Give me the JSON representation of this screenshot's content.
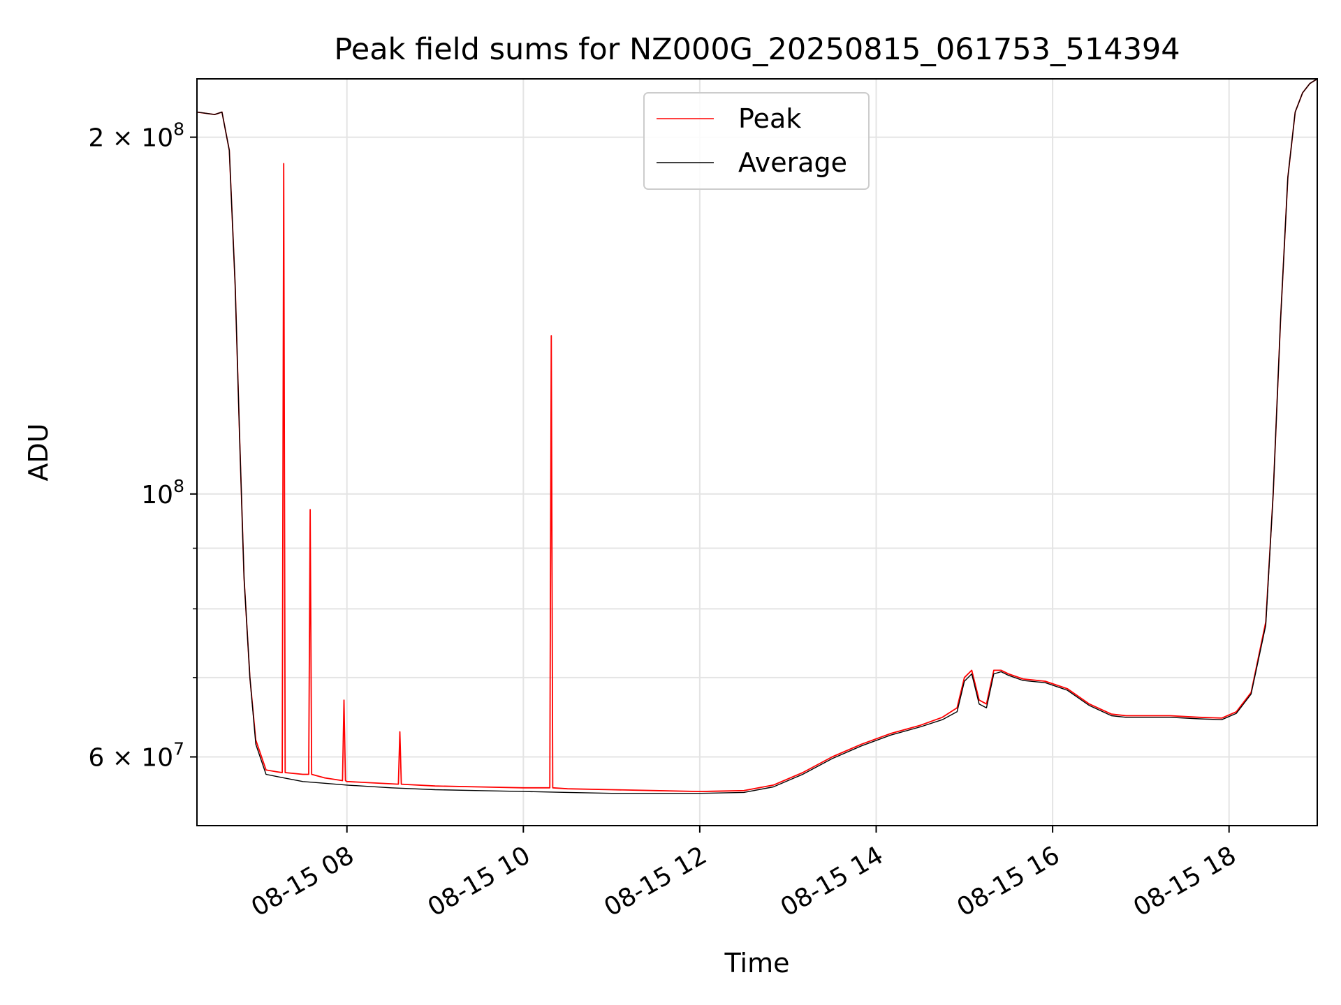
{
  "chart_data": {
    "type": "line",
    "title": "Peak field sums for NZ000G_20250815_061753_514394",
    "xlabel": "Time",
    "ylabel": "ADU",
    "x_range": [
      "2025-08-15 06:18",
      "2025-08-15 19:00"
    ],
    "y_range": [
      52500000,
      224000000
    ],
    "y_scale": "log",
    "grid": true,
    "legend": {
      "placement": "top-center"
    },
    "x_ticks": [
      {
        "x": "2025-08-15 08:00",
        "label": "08-15 08"
      },
      {
        "x": "2025-08-15 10:00",
        "label": "08-15 10"
      },
      {
        "x": "2025-08-15 12:00",
        "label": "08-15 12"
      },
      {
        "x": "2025-08-15 14:00",
        "label": "08-15 14"
      },
      {
        "x": "2025-08-15 16:00",
        "label": "08-15 16"
      },
      {
        "x": "2025-08-15 18:00",
        "label": "08-15 18"
      }
    ],
    "y_ticks": [
      {
        "value": 60000000,
        "base": "6 × 10",
        "exp": "7"
      },
      {
        "value": 100000000,
        "base": "10",
        "exp": "8"
      },
      {
        "value": 200000000,
        "base": "2 × 10",
        "exp": "8"
      }
    ],
    "y_minor_ticks": [
      70000000,
      80000000,
      90000000
    ],
    "series": [
      {
        "name": "Peak",
        "color": "#ff0000",
        "x": [
          "2025-08-15 06:18",
          "2025-08-15 06:30",
          "2025-08-15 06:35",
          "2025-08-15 06:40",
          "2025-08-15 06:44",
          "2025-08-15 06:47",
          "2025-08-15 06:50",
          "2025-08-15 06:54",
          "2025-08-15 06:58",
          "2025-08-15 07:05",
          "2025-08-15 07:12",
          "2025-08-15 07:16",
          "2025-08-15 07:17",
          "2025-08-15 07:18",
          "2025-08-15 07:30",
          "2025-08-15 07:34",
          "2025-08-15 07:35",
          "2025-08-15 07:36",
          "2025-08-15 07:45",
          "2025-08-15 07:57",
          "2025-08-15 07:58",
          "2025-08-15 07:59",
          "2025-08-15 08:00",
          "2025-08-15 08:35",
          "2025-08-15 08:36",
          "2025-08-15 08:37",
          "2025-08-15 09:00",
          "2025-08-15 09:30",
          "2025-08-15 10:00",
          "2025-08-15 10:18",
          "2025-08-15 10:19",
          "2025-08-15 10:20",
          "2025-08-15 10:30",
          "2025-08-15 11:00",
          "2025-08-15 11:30",
          "2025-08-15 12:00",
          "2025-08-15 12:30",
          "2025-08-15 12:50",
          "2025-08-15 13:10",
          "2025-08-15 13:30",
          "2025-08-15 13:50",
          "2025-08-15 14:10",
          "2025-08-15 14:30",
          "2025-08-15 14:45",
          "2025-08-15 14:55",
          "2025-08-15 15:00",
          "2025-08-15 15:05",
          "2025-08-15 15:10",
          "2025-08-15 15:15",
          "2025-08-15 15:20",
          "2025-08-15 15:25",
          "2025-08-15 15:30",
          "2025-08-15 15:40",
          "2025-08-15 15:55",
          "2025-08-15 16:10",
          "2025-08-15 16:25",
          "2025-08-15 16:40",
          "2025-08-15 16:50",
          "2025-08-15 17:00",
          "2025-08-15 17:20",
          "2025-08-15 17:40",
          "2025-08-15 17:55",
          "2025-08-15 18:05",
          "2025-08-15 18:15",
          "2025-08-15 18:25",
          "2025-08-15 18:30",
          "2025-08-15 18:35",
          "2025-08-15 18:40",
          "2025-08-15 18:45",
          "2025-08-15 18:50",
          "2025-08-15 18:55",
          "2025-08-15 19:00"
        ],
        "values": [
          210000000,
          209000000,
          210000000,
          195000000,
          150000000,
          112000000,
          85000000,
          70000000,
          62000000,
          58500000,
          58300000,
          58200000,
          190000000,
          58200000,
          58000000,
          58000000,
          97000000,
          58000000,
          57600000,
          57300000,
          67000000,
          57300000,
          57200000,
          56900000,
          63000000,
          56900000,
          56700000,
          56600000,
          56500000,
          56500000,
          136000000,
          56500000,
          56400000,
          56300000,
          56200000,
          56100000,
          56200000,
          56800000,
          58200000,
          60000000,
          61500000,
          62800000,
          63800000,
          64800000,
          66000000,
          70000000,
          71000000,
          67000000,
          66500000,
          71000000,
          71000000,
          70500000,
          69800000,
          69500000,
          68500000,
          66500000,
          65200000,
          65000000,
          65000000,
          65000000,
          64800000,
          64700000,
          65500000,
          68000000,
          78000000,
          100000000,
          140000000,
          185000000,
          210000000,
          218000000,
          222000000,
          224000000
        ]
      },
      {
        "name": "Average",
        "color": "#000000",
        "x": [
          "2025-08-15 06:18",
          "2025-08-15 06:30",
          "2025-08-15 06:35",
          "2025-08-15 06:40",
          "2025-08-15 06:44",
          "2025-08-15 06:47",
          "2025-08-15 06:50",
          "2025-08-15 06:54",
          "2025-08-15 06:58",
          "2025-08-15 07:05",
          "2025-08-15 07:17",
          "2025-08-15 07:30",
          "2025-08-15 07:45",
          "2025-08-15 08:00",
          "2025-08-15 08:30",
          "2025-08-15 09:00",
          "2025-08-15 09:30",
          "2025-08-15 10:00",
          "2025-08-15 10:30",
          "2025-08-15 11:00",
          "2025-08-15 11:30",
          "2025-08-15 12:00",
          "2025-08-15 12:30",
          "2025-08-15 12:50",
          "2025-08-15 13:10",
          "2025-08-15 13:30",
          "2025-08-15 13:50",
          "2025-08-15 14:10",
          "2025-08-15 14:30",
          "2025-08-15 14:45",
          "2025-08-15 14:55",
          "2025-08-15 15:00",
          "2025-08-15 15:05",
          "2025-08-15 15:10",
          "2025-08-15 15:15",
          "2025-08-15 15:20",
          "2025-08-15 15:25",
          "2025-08-15 15:30",
          "2025-08-15 15:40",
          "2025-08-15 15:55",
          "2025-08-15 16:10",
          "2025-08-15 16:25",
          "2025-08-15 16:40",
          "2025-08-15 16:50",
          "2025-08-15 17:00",
          "2025-08-15 17:20",
          "2025-08-15 17:40",
          "2025-08-15 17:55",
          "2025-08-15 18:05",
          "2025-08-15 18:15",
          "2025-08-15 18:25",
          "2025-08-15 18:30",
          "2025-08-15 18:35",
          "2025-08-15 18:40",
          "2025-08-15 18:45",
          "2025-08-15 18:50",
          "2025-08-15 18:55",
          "2025-08-15 19:00"
        ],
        "values": [
          210000000,
          209000000,
          210000000,
          195000000,
          150000000,
          112000000,
          85000000,
          70000000,
          61500000,
          58000000,
          57600000,
          57200000,
          57000000,
          56800000,
          56500000,
          56300000,
          56200000,
          56100000,
          56000000,
          55900000,
          55900000,
          55900000,
          56000000,
          56600000,
          58000000,
          59800000,
          61300000,
          62600000,
          63600000,
          64500000,
          65500000,
          69500000,
          70500000,
          66500000,
          66000000,
          70500000,
          70800000,
          70300000,
          69600000,
          69300000,
          68300000,
          66300000,
          65000000,
          64800000,
          64800000,
          64800000,
          64600000,
          64500000,
          65300000,
          67800000,
          77500000,
          100000000,
          140000000,
          185000000,
          210000000,
          218000000,
          222000000,
          224000000
        ]
      }
    ]
  }
}
